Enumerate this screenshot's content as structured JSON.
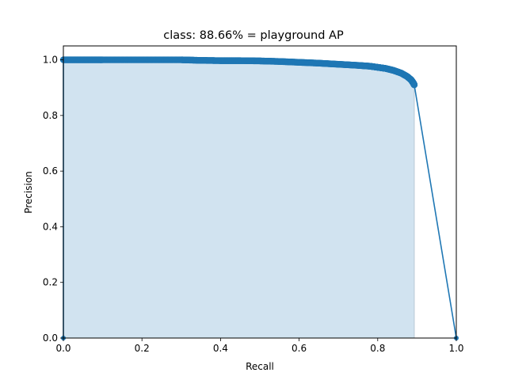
{
  "chart_data": {
    "type": "area",
    "title": "class: 88.66% = playground AP",
    "xlabel": "Recall",
    "ylabel": "Precision",
    "xlim": [
      0.0,
      1.0
    ],
    "ylim": [
      0.0,
      1.05
    ],
    "grid": false,
    "legend": "none",
    "x_ticks": [
      "0.0",
      "0.2",
      "0.4",
      "0.6",
      "0.8",
      "1.0"
    ],
    "y_ticks": [
      "0.0",
      "0.2",
      "0.4",
      "0.6",
      "0.8",
      "1.0"
    ],
    "colors": {
      "line": "#1f77b4",
      "fill": "#d1e3f0",
      "edge": "#b9c8d6"
    },
    "series": [
      {
        "points": [
          [
            0.0,
            0.0
          ],
          [
            0.0,
            1.0
          ],
          [
            0.05,
            1.0
          ],
          [
            0.1,
            1.0
          ],
          [
            0.2,
            1.0
          ],
          [
            0.3,
            1.0
          ],
          [
            0.35,
            0.998
          ],
          [
            0.4,
            0.997
          ],
          [
            0.45,
            0.997
          ],
          [
            0.5,
            0.996
          ],
          [
            0.55,
            0.994
          ],
          [
            0.6,
            0.991
          ],
          [
            0.65,
            0.988
          ],
          [
            0.7,
            0.984
          ],
          [
            0.75,
            0.98
          ],
          [
            0.78,
            0.977
          ],
          [
            0.8,
            0.973
          ],
          [
            0.82,
            0.969
          ],
          [
            0.84,
            0.962
          ],
          [
            0.86,
            0.952
          ],
          [
            0.875,
            0.94
          ],
          [
            0.885,
            0.928
          ],
          [
            0.89,
            0.918
          ],
          [
            0.893,
            0.91
          ],
          [
            1.0,
            0.0
          ]
        ]
      }
    ],
    "fill_until_recall": 0.893
  }
}
